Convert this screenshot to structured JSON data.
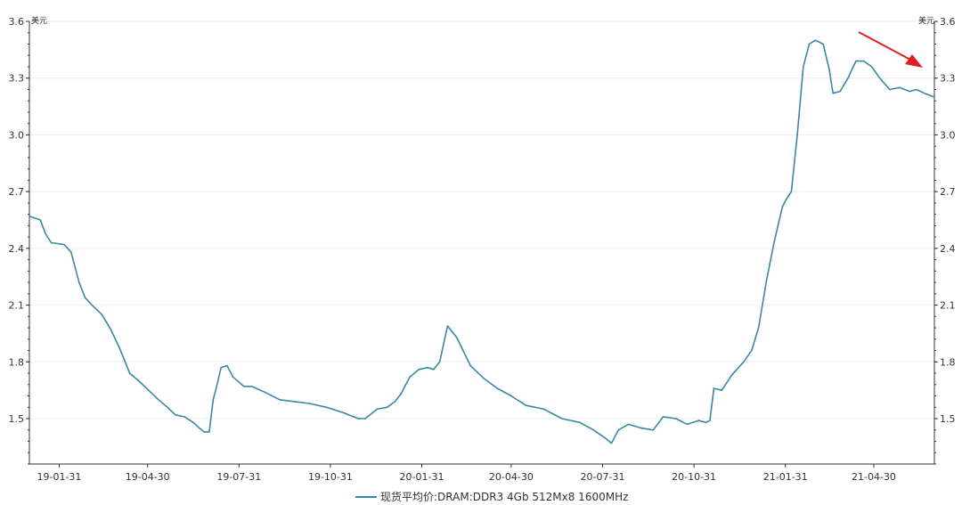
{
  "chart_data": {
    "type": "line",
    "unit_left": "美元",
    "unit_right": "美元",
    "ylim": [
      1.26,
      3.6
    ],
    "yticks": [
      1.5,
      1.8,
      2.1,
      2.4,
      2.7,
      3.0,
      3.3,
      3.6
    ],
    "ytick_labels": [
      "1.5",
      "1.8",
      "2.1",
      "2.4",
      "2.7",
      "3.0",
      "3.3",
      "3.6"
    ],
    "xlim": [
      "2019-01-01",
      "2021-06-30"
    ],
    "xticks": [
      "2019-01-31",
      "2019-04-30",
      "2019-07-31",
      "2019-10-31",
      "2020-01-31",
      "2020-04-30",
      "2020-07-31",
      "2020-10-31",
      "2021-01-31",
      "2021-04-30"
    ],
    "xtick_labels": [
      "19-01-31",
      "19-04-30",
      "19-07-31",
      "19-10-31",
      "20-01-31",
      "20-04-30",
      "20-07-31",
      "20-10-31",
      "21-01-31",
      "21-04-30"
    ],
    "grid": true,
    "legend_position": "bottom",
    "series": [
      {
        "name": "现货平均价:DRAM:DDR3 4Gb 512Mx8 1600MHz",
        "color": "#3a87a6",
        "x": [
          "2019-01-01",
          "2019-01-12",
          "2019-01-17",
          "2019-01-23",
          "2019-02-05",
          "2019-02-12",
          "2019-02-20",
          "2019-02-26",
          "2019-03-05",
          "2019-03-15",
          "2019-03-24",
          "2019-04-02",
          "2019-04-12",
          "2019-04-21",
          "2019-05-01",
          "2019-05-11",
          "2019-05-20",
          "2019-05-28",
          "2019-06-06",
          "2019-06-15",
          "2019-06-21",
          "2019-06-26",
          "2019-07-01",
          "2019-07-05",
          "2019-07-08",
          "2019-07-13",
          "2019-07-19",
          "2019-07-25",
          "2019-08-05",
          "2019-08-13",
          "2019-08-26",
          "2019-09-10",
          "2019-09-25",
          "2019-10-10",
          "2019-10-27",
          "2019-11-14",
          "2019-11-28",
          "2019-12-05",
          "2019-12-17",
          "2019-12-27",
          "2020-01-04",
          "2020-01-10",
          "2020-01-19",
          "2020-01-28",
          "2020-02-06",
          "2020-02-12",
          "2020-02-18",
          "2020-02-26",
          "2020-03-06",
          "2020-03-20",
          "2020-04-03",
          "2020-04-16",
          "2020-04-30",
          "2020-05-15",
          "2020-06-02",
          "2020-06-20",
          "2020-07-08",
          "2020-07-22",
          "2020-08-02",
          "2020-08-09",
          "2020-08-16",
          "2020-08-26",
          "2020-09-08",
          "2020-09-20",
          "2020-09-30",
          "2020-10-13",
          "2020-10-24",
          "2020-11-05",
          "2020-11-12",
          "2020-11-16",
          "2020-11-20",
          "2020-11-28",
          "2020-12-08",
          "2020-12-20",
          "2020-12-28",
          "2021-01-04",
          "2021-01-12",
          "2021-01-20",
          "2021-01-28",
          "2021-02-01",
          "2021-02-06",
          "2021-02-12",
          "2021-02-18",
          "2021-02-24",
          "2021-03-02",
          "2021-03-10",
          "2021-03-16",
          "2021-03-20",
          "2021-03-27",
          "2021-04-04",
          "2021-04-12",
          "2021-04-20",
          "2021-04-28",
          "2021-05-06",
          "2021-05-16",
          "2021-05-26",
          "2021-06-05",
          "2021-06-12",
          "2021-06-20",
          "2021-06-30"
        ],
        "values": [
          2.57,
          2.55,
          2.48,
          2.43,
          2.42,
          2.38,
          2.22,
          2.14,
          2.1,
          2.05,
          1.97,
          1.87,
          1.74,
          1.7,
          1.65,
          1.6,
          1.56,
          1.52,
          1.51,
          1.48,
          1.45,
          1.43,
          1.43,
          1.6,
          1.66,
          1.77,
          1.78,
          1.72,
          1.67,
          1.67,
          1.64,
          1.6,
          1.59,
          1.58,
          1.56,
          1.53,
          1.5,
          1.5,
          1.55,
          1.56,
          1.59,
          1.63,
          1.72,
          1.76,
          1.77,
          1.76,
          1.8,
          1.99,
          1.93,
          1.78,
          1.71,
          1.66,
          1.62,
          1.57,
          1.55,
          1.5,
          1.48,
          1.44,
          1.4,
          1.37,
          1.44,
          1.47,
          1.45,
          1.44,
          1.51,
          1.5,
          1.47,
          1.49,
          1.48,
          1.49,
          1.66,
          1.65,
          1.73,
          1.8,
          1.86,
          1.98,
          2.23,
          2.44,
          2.62,
          2.66,
          2.7,
          3.0,
          3.36,
          3.48,
          3.5,
          3.48,
          3.35,
          3.22,
          3.23,
          3.3,
          3.39,
          3.39,
          3.36,
          3.3,
          3.24,
          3.25,
          3.23,
          3.24,
          3.22,
          3.2
        ]
      }
    ],
    "annotation": {
      "type": "arrow",
      "color": "#e02020",
      "direction": "down-right"
    }
  }
}
